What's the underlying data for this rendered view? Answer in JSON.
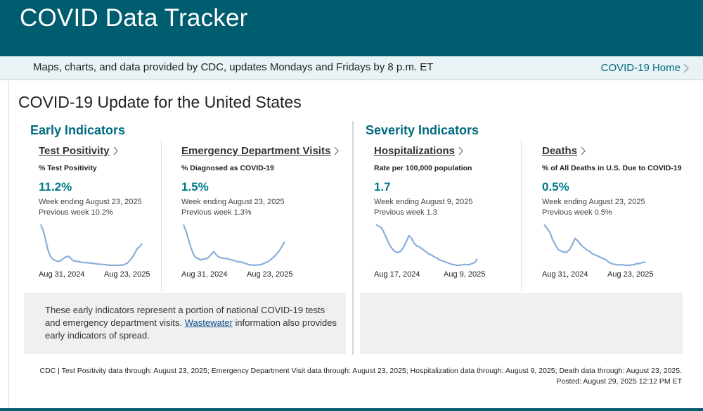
{
  "header": {
    "title": "COVID Data Tracker"
  },
  "subbar": {
    "text": "Maps, charts, and data provided by CDC, updates Mondays and Fridays by 8 p.m. ET",
    "home_link": "COVID-19 Home"
  },
  "page": {
    "title": "COVID-19 Update for the United States"
  },
  "sections": {
    "early": "Early Indicators",
    "severity": "Severity Indicators"
  },
  "cards": [
    {
      "title": "Test Positivity",
      "subtitle": "% Test Positivity",
      "value": "11.2%",
      "week": "Week ending August 23, 2025",
      "previous": "Previous week 10.2%",
      "x_start": "Aug 31, 2024",
      "x_end": "Aug 23, 2025",
      "trend": [
        17.5,
        15.5,
        12.5,
        9.0,
        7.0,
        6.0,
        5.6,
        5.3,
        5.4,
        6.0,
        6.6,
        7.0,
        6.7,
        5.8,
        5.4,
        5.3,
        5.2,
        5.0,
        4.9,
        4.9,
        4.8,
        4.7,
        4.6,
        4.5,
        4.4,
        4.3,
        4.3,
        4.2,
        4.1,
        4.0,
        4.0,
        4.0,
        4.0,
        4.1,
        4.1,
        4.4,
        4.8,
        5.6,
        6.6,
        8.0,
        9.5,
        10.2,
        11.2
      ]
    },
    {
      "title": "Emergency Department Visits",
      "subtitle": "% Diagnosed as COVID-19",
      "value": "1.5%",
      "week": "Week ending August 23, 2025",
      "previous": "Previous week 1.3%",
      "x_start": "Aug 31, 2024",
      "x_end": "Aug 23, 2025",
      "trend": [
        2.3,
        2.0,
        1.6,
        1.2,
        0.9,
        0.75,
        0.7,
        0.65,
        0.7,
        0.7,
        0.78,
        0.92,
        1.05,
        0.88,
        0.78,
        0.75,
        0.72,
        0.72,
        0.68,
        0.66,
        0.62,
        0.58,
        0.56,
        0.55,
        0.5,
        0.47,
        0.42,
        0.42,
        0.4,
        0.42,
        0.42,
        0.45,
        0.5,
        0.55,
        0.62,
        0.72,
        0.82,
        0.95,
        1.1,
        1.3,
        1.5
      ]
    },
    {
      "title": "Hospitalizations",
      "subtitle": "Rate per 100,000 population",
      "value": "1.7",
      "week": "Week ending August 9, 2025",
      "previous": "Previous week 1.3",
      "x_start": "Aug 17, 2024",
      "x_end": "Aug 9, 2025",
      "trend": [
        5.4,
        5.2,
        5.1,
        4.6,
        4.0,
        3.4,
        2.9,
        2.6,
        2.4,
        2.4,
        2.6,
        3.0,
        3.6,
        4.2,
        3.9,
        3.4,
        3.1,
        3.0,
        2.8,
        2.6,
        2.4,
        2.2,
        2.1,
        1.9,
        1.8,
        1.6,
        1.5,
        1.4,
        1.3,
        1.2,
        1.1,
        1.05,
        1.0,
        1.0,
        1.05,
        1.1,
        1.05,
        1.1,
        1.2,
        1.3,
        1.7
      ]
    },
    {
      "title": "Deaths",
      "subtitle": "% of All Deaths in U.S. Due to COVID-19",
      "value": "0.5%",
      "week": "Week ending August 23, 2025",
      "previous": "Previous week 0.5%",
      "x_start": "Aug 31, 2024",
      "x_end": "Aug 23, 2025",
      "trend": [
        2.0,
        1.85,
        1.7,
        1.4,
        1.2,
        1.0,
        0.95,
        0.9,
        0.9,
        1.0,
        1.2,
        1.45,
        1.35,
        1.2,
        1.1,
        1.0,
        0.95,
        0.85,
        0.8,
        0.75,
        0.7,
        0.65,
        0.6,
        0.5,
        0.45,
        0.42,
        0.4,
        0.4,
        0.4,
        0.38,
        0.38,
        0.4,
        0.4,
        0.45,
        0.45,
        0.5,
        0.5
      ]
    }
  ],
  "early_note": {
    "before": "These early indicators represent a portion of national COVID-19 tests and emergency department visits. ",
    "link": "Wastewater",
    "after": " information also provides early indicators of spread."
  },
  "footer": {
    "line1": "CDC | Test Positivity data through: August 23, 2025; Emergency Department Visit data through: August 23, 2025; Hospitalization data through: August 9, 2025; Death data through: August 23, 2025.",
    "line2": "Posted: August 29, 2025 12:12 PM ET"
  },
  "colors": {
    "brand": "#005c6f",
    "accent": "#007a8a",
    "sparkline": "#8aaedc"
  }
}
